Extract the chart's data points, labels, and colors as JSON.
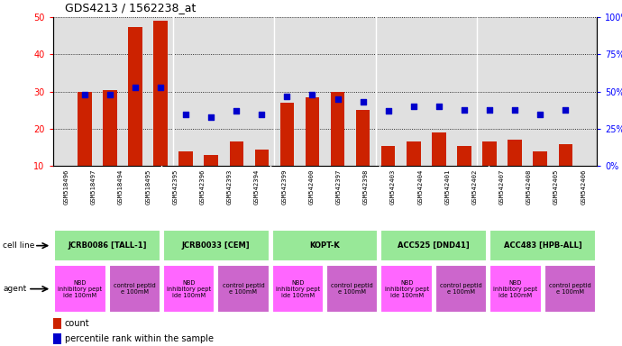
{
  "title": "GDS4213 / 1562238_at",
  "samples": [
    "GSM518496",
    "GSM518497",
    "GSM518494",
    "GSM518495",
    "GSM542395",
    "GSM542396",
    "GSM542393",
    "GSM542394",
    "GSM542399",
    "GSM542400",
    "GSM542397",
    "GSM542398",
    "GSM542403",
    "GSM542404",
    "GSM542401",
    "GSM542402",
    "GSM542407",
    "GSM542408",
    "GSM542405",
    "GSM542406"
  ],
  "counts": [
    30,
    30.5,
    47.5,
    49,
    14,
    13,
    16.5,
    14.5,
    27,
    28.5,
    30,
    25,
    15.5,
    16.5,
    19,
    15.5,
    16.5,
    17,
    14,
    16
  ],
  "percentiles_pct": [
    48,
    48,
    53,
    53,
    35,
    33,
    37,
    35,
    47,
    48,
    45,
    43,
    37,
    40,
    40,
    38,
    38,
    38,
    35,
    38
  ],
  "cell_lines": [
    {
      "label": "JCRB0086 [TALL-1]",
      "start": 0,
      "end": 4,
      "color": "#98E898"
    },
    {
      "label": "JCRB0033 [CEM]",
      "start": 4,
      "end": 8,
      "color": "#98E898"
    },
    {
      "label": "KOPT-K",
      "start": 8,
      "end": 12,
      "color": "#98E898"
    },
    {
      "label": "ACC525 [DND41]",
      "start": 12,
      "end": 16,
      "color": "#98E898"
    },
    {
      "label": "ACC483 [HPB-ALL]",
      "start": 16,
      "end": 20,
      "color": "#98E898"
    }
  ],
  "agents": [
    {
      "label": "NBD\ninhibitory pept\nide 100mM",
      "start": 0,
      "end": 2,
      "color": "#FF66FF"
    },
    {
      "label": "control peptid\ne 100mM",
      "start": 2,
      "end": 4,
      "color": "#CC66CC"
    },
    {
      "label": "NBD\ninhibitory pept\nide 100mM",
      "start": 4,
      "end": 6,
      "color": "#FF66FF"
    },
    {
      "label": "control peptid\ne 100mM",
      "start": 6,
      "end": 8,
      "color": "#CC66CC"
    },
    {
      "label": "NBD\ninhibitory pept\nide 100mM",
      "start": 8,
      "end": 10,
      "color": "#FF66FF"
    },
    {
      "label": "control peptid\ne 100mM",
      "start": 10,
      "end": 12,
      "color": "#CC66CC"
    },
    {
      "label": "NBD\ninhibitory pept\nide 100mM",
      "start": 12,
      "end": 14,
      "color": "#FF66FF"
    },
    {
      "label": "control peptid\ne 100mM",
      "start": 14,
      "end": 16,
      "color": "#CC66CC"
    },
    {
      "label": "NBD\ninhibitory pept\nide 100mM",
      "start": 16,
      "end": 18,
      "color": "#FF66FF"
    },
    {
      "label": "control peptid\ne 100mM",
      "start": 18,
      "end": 20,
      "color": "#CC66CC"
    }
  ],
  "ylim_left": [
    10,
    50
  ],
  "ylim_right": [
    0,
    100
  ],
  "yticks_left": [
    10,
    20,
    30,
    40,
    50
  ],
  "yticks_right": [
    0,
    25,
    50,
    75,
    100
  ],
  "bar_color": "#CC2200",
  "dot_color": "#0000CC",
  "bar_width": 0.55,
  "bg_color": "#E0E0E0",
  "sample_bg_color": "#C8C8C8"
}
